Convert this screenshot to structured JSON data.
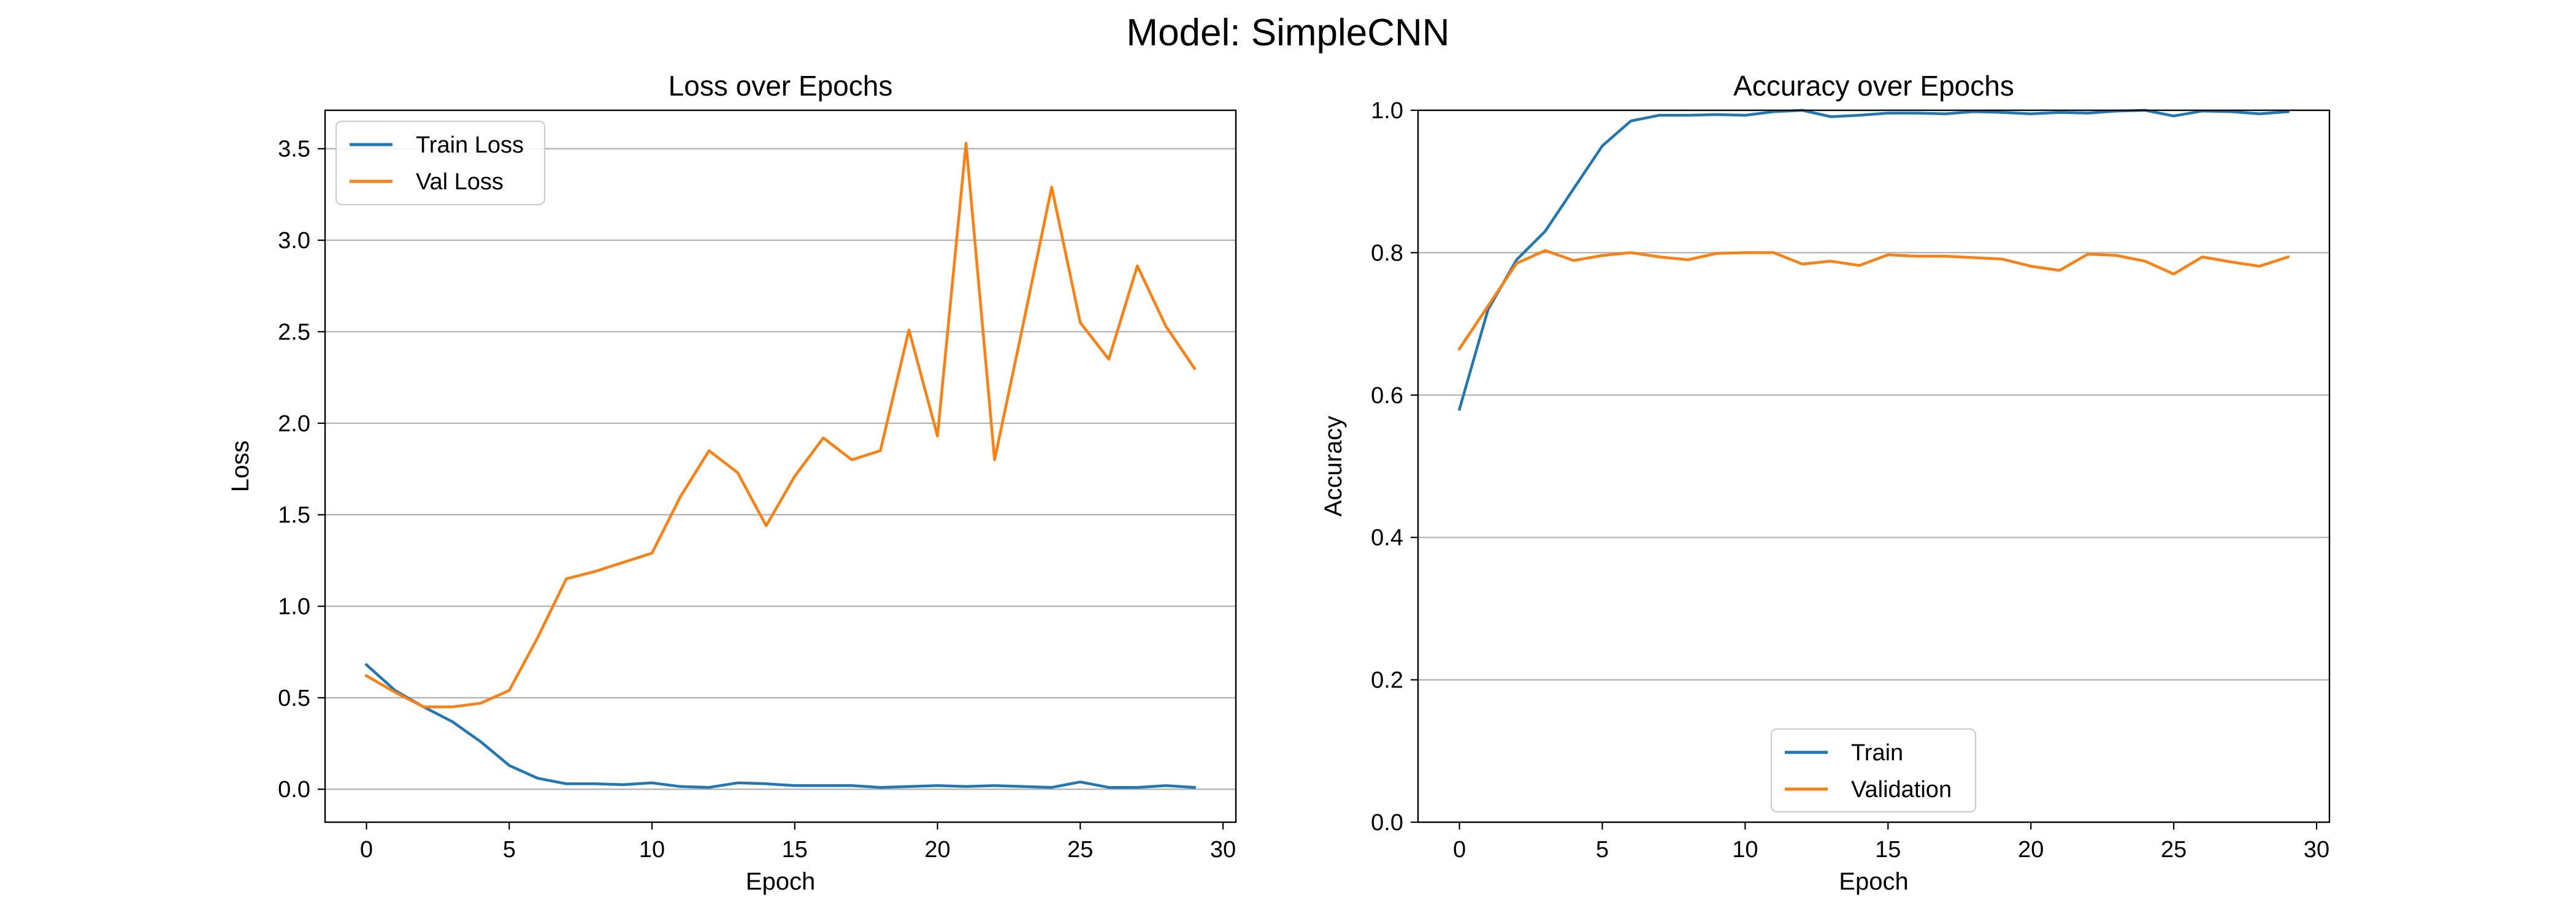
{
  "figure": {
    "suptitle": "Model: SimpleCNN"
  },
  "colors": {
    "train": "#1f77b4",
    "val": "#ff7f0e",
    "grid": "#b0b0b0",
    "axes": "#000000"
  },
  "chart_data": [
    {
      "type": "line",
      "title": "Loss over Epochs",
      "xlabel": "Epoch",
      "ylabel": "Loss",
      "xlim": [
        -1.45,
        30.45
      ],
      "ylim": [
        -0.18,
        3.71
      ],
      "xticks": [
        0,
        5,
        10,
        15,
        20,
        25,
        30
      ],
      "yticks": [
        0.0,
        0.5,
        1.0,
        1.5,
        2.0,
        2.5,
        3.0,
        3.5
      ],
      "grid": "y",
      "legend": "upper-left",
      "x": [
        0,
        1,
        2,
        3,
        4,
        5,
        6,
        7,
        8,
        9,
        10,
        11,
        12,
        13,
        14,
        15,
        16,
        17,
        18,
        19,
        20,
        21,
        22,
        23,
        24,
        25,
        26,
        27,
        28,
        29
      ],
      "series": [
        {
          "name": "Train Loss",
          "color": "#1f77b4",
          "values": [
            0.68,
            0.54,
            0.45,
            0.37,
            0.26,
            0.13,
            0.06,
            0.03,
            0.03,
            0.025,
            0.035,
            0.015,
            0.01,
            0.035,
            0.03,
            0.02,
            0.02,
            0.02,
            0.01,
            0.015,
            0.02,
            0.015,
            0.02,
            0.015,
            0.01,
            0.04,
            0.01,
            0.01,
            0.02,
            0.01
          ]
        },
        {
          "name": "Val Loss",
          "color": "#ff7f0e",
          "values": [
            0.62,
            0.53,
            0.45,
            0.45,
            0.47,
            0.54,
            0.83,
            1.15,
            1.19,
            1.24,
            1.29,
            1.6,
            1.85,
            1.73,
            1.44,
            1.71,
            1.92,
            1.8,
            1.85,
            2.51,
            1.93,
            3.53,
            1.8,
            2.54,
            3.29,
            2.55,
            2.35,
            2.86,
            2.53,
            2.3
          ]
        }
      ]
    },
    {
      "type": "line",
      "title": "Accuracy over Epochs",
      "xlabel": "Epoch",
      "ylabel": "Accuracy",
      "xlim": [
        -1.45,
        30.45
      ],
      "ylim": [
        0.0,
        1.0
      ],
      "xticks": [
        0,
        5,
        10,
        15,
        20,
        25,
        30
      ],
      "yticks": [
        0.0,
        0.2,
        0.4,
        0.6,
        0.8,
        1.0
      ],
      "grid": "y",
      "legend": "lower-center",
      "x": [
        0,
        1,
        2,
        3,
        4,
        5,
        6,
        7,
        8,
        9,
        10,
        11,
        12,
        13,
        14,
        15,
        16,
        17,
        18,
        19,
        20,
        21,
        22,
        23,
        24,
        25,
        26,
        27,
        28,
        29
      ],
      "series": [
        {
          "name": "Train",
          "color": "#1f77b4",
          "values": [
            0.58,
            0.72,
            0.79,
            0.83,
            0.89,
            0.95,
            0.985,
            0.993,
            0.993,
            0.994,
            0.993,
            0.998,
            1.0,
            0.991,
            0.993,
            0.996,
            0.996,
            0.995,
            0.998,
            0.997,
            0.995,
            0.997,
            0.996,
            0.999,
            1.0,
            0.992,
            0.999,
            0.998,
            0.995,
            0.998
          ]
        },
        {
          "name": "Validation",
          "color": "#ff7f0e",
          "values": [
            0.665,
            0.725,
            0.785,
            0.803,
            0.789,
            0.796,
            0.8,
            0.794,
            0.79,
            0.799,
            0.8,
            0.8,
            0.784,
            0.788,
            0.782,
            0.797,
            0.795,
            0.795,
            0.793,
            0.791,
            0.781,
            0.775,
            0.798,
            0.796,
            0.788,
            0.77,
            0.794,
            0.787,
            0.781,
            0.794
          ]
        }
      ]
    }
  ]
}
